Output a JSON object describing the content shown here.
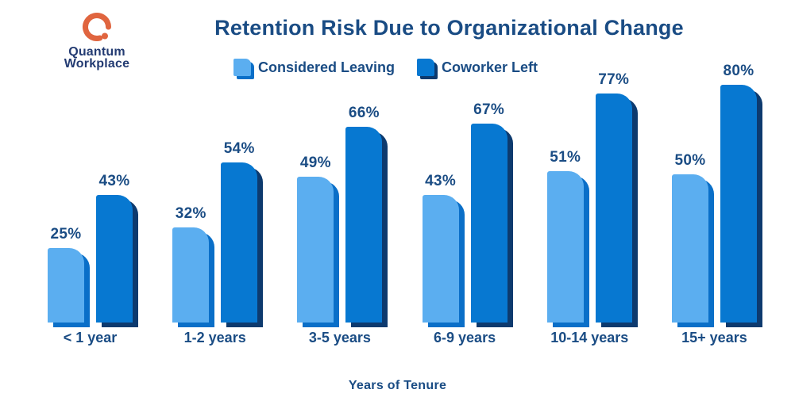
{
  "brand": {
    "name_line1": "Quantum",
    "name_line2": "Workplace"
  },
  "title": "Retention Risk Due to Organizational Change",
  "legend": [
    {
      "label": "Considered Leaving"
    },
    {
      "label": "Coworker Left"
    }
  ],
  "xlabel": "Years of Tenure",
  "chart_data": {
    "type": "bar",
    "categories": [
      "< 1 year",
      "1-2 years",
      "3-5 years",
      "6-9 years",
      "10-14 years",
      "15+ years"
    ],
    "series": [
      {
        "name": "Considered Leaving",
        "values": [
          25,
          32,
          49,
          43,
          51,
          50
        ]
      },
      {
        "name": "Coworker Left",
        "values": [
          43,
          54,
          66,
          67,
          77,
          80
        ]
      }
    ],
    "value_suffix": "%",
    "ylim": [
      0,
      100
    ],
    "grid": false,
    "legend_position": "top",
    "xlabel": "Years of Tenure"
  },
  "colors": {
    "light_bar": "#5BAEF0",
    "light_bar_shadow": "#0A6FC8",
    "dark_bar": "#0778D1",
    "dark_bar_shadow": "#0D3A6E",
    "text": "#1A4C84",
    "logo_text": "#233B72",
    "logo_orange": "#E0653F"
  }
}
